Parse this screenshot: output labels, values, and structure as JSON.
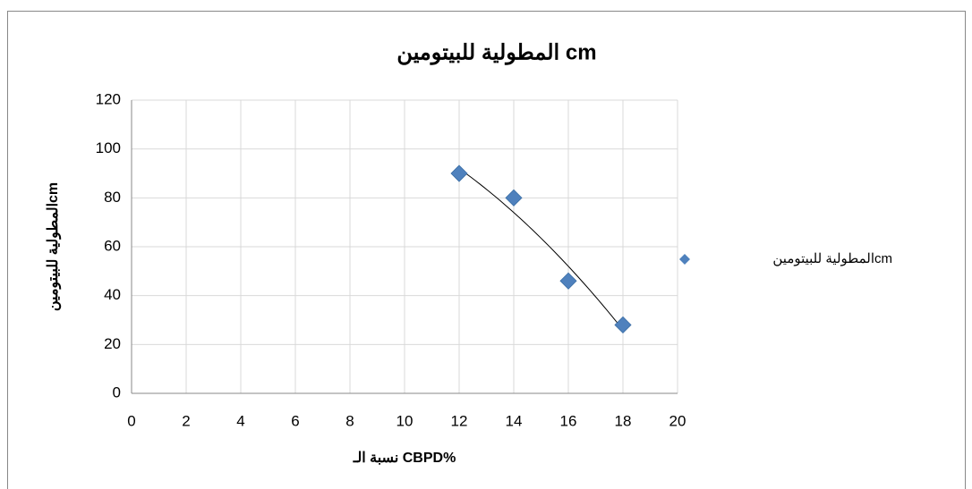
{
  "chart_data": {
    "type": "scatter",
    "title": "المطولية للبيتومين cm",
    "xlabel": "نسبة الـ CBPD%",
    "ylabel": "المطولية للبيتومينcm",
    "series": [
      {
        "name": "المطولية للبيتومينcm",
        "color": "#4f81bd",
        "x": [
          12,
          14,
          16,
          18
        ],
        "values": [
          90,
          80,
          46,
          28
        ]
      }
    ],
    "xlim": [
      0,
      20
    ],
    "xticks": [
      0,
      2,
      4,
      6,
      8,
      10,
      12,
      14,
      16,
      18,
      20
    ],
    "ylim": [
      0,
      120
    ],
    "yticks": [
      0,
      20,
      40,
      60,
      80,
      100,
      120
    ],
    "grid": true,
    "legend": "right",
    "trendline": "polynomial"
  }
}
